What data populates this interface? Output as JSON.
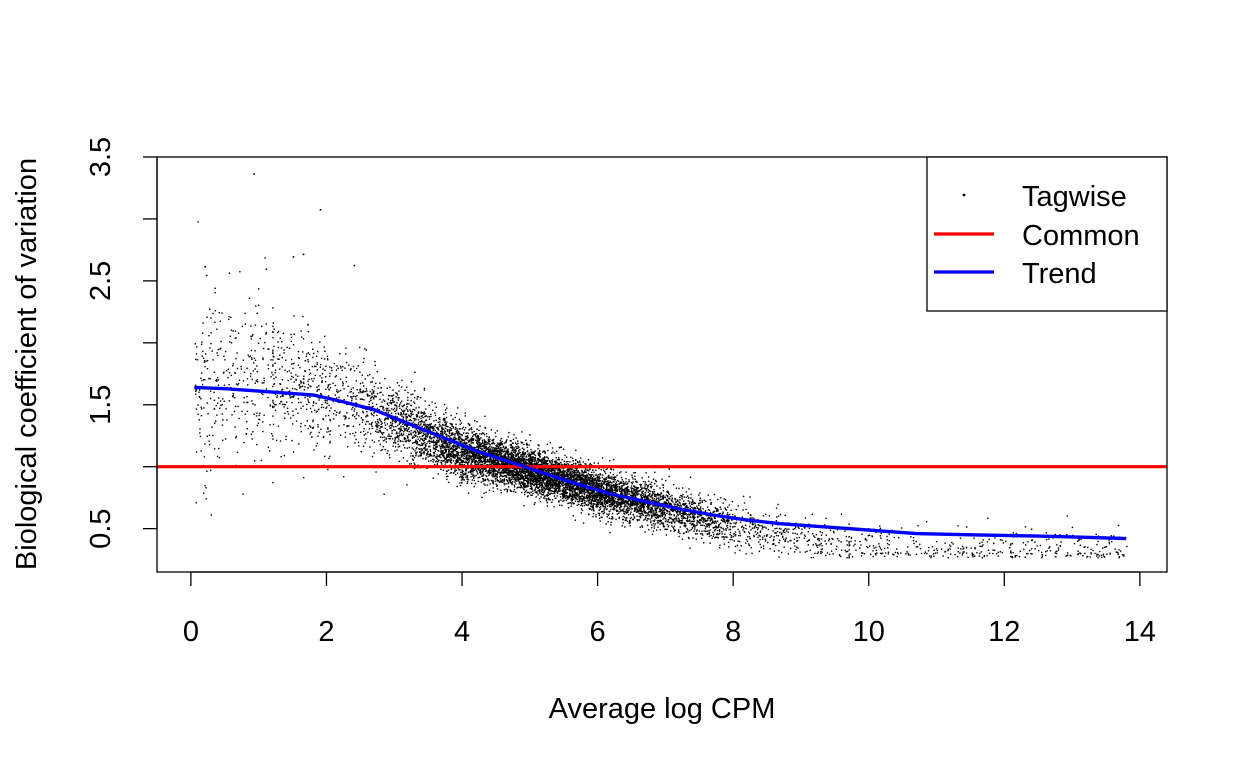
{
  "chart_data": {
    "type": "scatter",
    "xlabel": "Average log CPM",
    "ylabel": "Biological coefficient of variation",
    "xlim": [
      -0.5,
      14.4
    ],
    "ylim": [
      0.15,
      3.5
    ],
    "x_ticks": [
      0,
      2,
      4,
      6,
      8,
      10,
      12,
      14
    ],
    "x_tick_labels": [
      "0",
      "2",
      "4",
      "6",
      "8",
      "10",
      "12",
      "14"
    ],
    "y_ticks": [
      0.5,
      1.0,
      1.5,
      2.0,
      2.5,
      3.0,
      3.5
    ],
    "y_tick_labels": [
      "0.5",
      "",
      "1.5",
      "",
      "2.5",
      "",
      "3.5"
    ],
    "grid": false,
    "legend": {
      "position": "top-right",
      "entries": [
        {
          "label": "Tagwise",
          "kind": "point",
          "color": "#000000"
        },
        {
          "label": "Common",
          "kind": "line",
          "color": "#ff0000"
        },
        {
          "label": "Trend",
          "kind": "line",
          "color": "#0000ff"
        }
      ]
    },
    "series": [
      {
        "name": "Tagwise",
        "kind": "scatter",
        "color": "#000000",
        "trend_center": {
          "x": [
            0.05,
            1.0,
            2.0,
            3.0,
            4.0,
            5.0,
            6.0,
            7.0,
            8.0,
            9.0,
            10.0,
            11.0,
            12.0,
            13.0,
            13.8
          ],
          "y": [
            1.64,
            1.75,
            1.6,
            1.38,
            1.12,
            0.97,
            0.81,
            0.66,
            0.52,
            0.43,
            0.37,
            0.34,
            0.33,
            0.33,
            0.33
          ]
        },
        "outliers": {
          "x": [
            0.92,
            1.9,
            1.65,
            1.5,
            0.2,
            0.22,
            2.4,
            1.1,
            13.0,
            13.6
          ],
          "y": [
            3.37,
            3.08,
            2.72,
            2.7,
            2.62,
            2.55,
            2.63,
            2.6,
            0.45,
            0.44
          ]
        }
      },
      {
        "name": "Common",
        "kind": "hline",
        "color": "#ff0000",
        "y": 1.0
      },
      {
        "name": "Trend",
        "kind": "line",
        "color": "#0000ff",
        "x": [
          0.05,
          0.5,
          1.0,
          1.5,
          1.8,
          2.2,
          2.7,
          3.2,
          3.7,
          4.2,
          4.7,
          5.2,
          5.7,
          6.2,
          6.7,
          7.2,
          7.7,
          8.2,
          8.7,
          9.2,
          9.7,
          10.2,
          10.7,
          11.5,
          12.5,
          13.2,
          13.8
        ],
        "y": [
          1.64,
          1.63,
          1.61,
          1.59,
          1.58,
          1.53,
          1.46,
          1.35,
          1.24,
          1.13,
          1.04,
          0.95,
          0.86,
          0.78,
          0.72,
          0.66,
          0.61,
          0.57,
          0.54,
          0.52,
          0.5,
          0.48,
          0.46,
          0.45,
          0.44,
          0.43,
          0.42
        ]
      }
    ]
  }
}
